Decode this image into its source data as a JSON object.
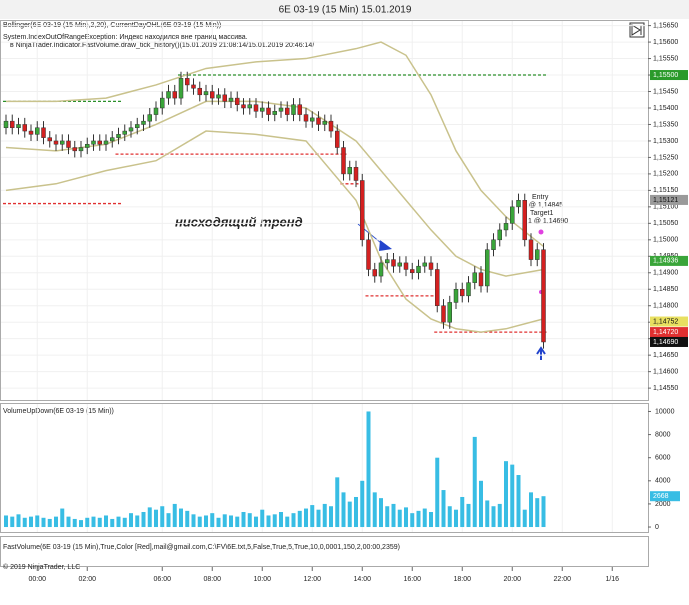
{
  "chart_data": [
    {
      "type": "candlestick",
      "title": "6E 03-19 (15 Min)  15.01.2019",
      "legend_text": [
        "Bollinger(6E 03-19 (15 Min),2,20), CurrentDayOHL(6E 03-19 (15 Min))",
        "System.IndexOutOfRangeException: Индекс находился вне границ массива.",
        "в NinjaTrader.Indicator.FastVolume.draw_tick_history()(15.01.2019 21:08:14/15.01.2019 20:46:14/"
      ],
      "annotation": "нисходящий тренд",
      "trade_labels": [
        "Entry",
        "1 @ 1,14845",
        "Target1",
        "1 @ 1,14690"
      ],
      "categories": [
        null,
        null,
        null,
        null,
        null,
        "00:00",
        null,
        null,
        null,
        null,
        null,
        null,
        null,
        "02:00",
        null,
        null,
        null,
        null,
        null,
        null,
        null,
        null,
        null,
        null,
        null,
        "06:00",
        null,
        null,
        null,
        null,
        null,
        null,
        null,
        "08:00",
        null,
        null,
        null,
        null,
        null,
        null,
        null,
        "10:00",
        null,
        null,
        null,
        null,
        null,
        null,
        null,
        "12:00",
        null,
        null,
        null,
        null,
        null,
        null,
        null,
        "14:00",
        null,
        null,
        null,
        null,
        null,
        null,
        null,
        "16:00",
        null,
        null,
        null,
        null,
        null,
        null,
        null,
        "18:00",
        null,
        null,
        null,
        null,
        null,
        null,
        null,
        "20:00",
        null,
        null,
        null,
        null,
        null,
        null,
        null,
        "22:00",
        null,
        null,
        null,
        null,
        null,
        null,
        null,
        "1/16"
      ],
      "open": [
        1.1534,
        1.1536,
        1.1534,
        1.1535,
        1.1533,
        1.1532,
        1.1534,
        1.1531,
        1.153,
        1.1529,
        1.153,
        1.1528,
        1.1527,
        1.1528,
        1.1529,
        1.153,
        1.1529,
        1.153,
        1.1531,
        1.1532,
        1.1533,
        1.1534,
        1.1535,
        1.1536,
        1.1538,
        1.154,
        1.1543,
        1.1545,
        1.1543,
        1.1549,
        1.1547,
        1.1546,
        1.1544,
        1.1545,
        1.1543,
        1.1544,
        1.1542,
        1.1543,
        1.1541,
        1.154,
        1.1541,
        1.1539,
        1.154,
        1.1538,
        1.1539,
        1.154,
        1.1538,
        1.1541,
        1.1538,
        1.1536,
        1.1537,
        1.1535,
        1.1536,
        1.1533,
        1.1528,
        1.152,
        1.1522,
        1.1518,
        1.15,
        1.1491,
        1.1489,
        1.1493,
        1.1494,
        1.1492,
        1.1493,
        1.1491,
        1.149,
        1.1492,
        1.1493,
        1.1491,
        1.148,
        1.1475,
        1.1481,
        1.1485,
        1.1483,
        1.1487,
        1.149,
        1.1486,
        1.1497,
        1.15,
        1.1503,
        1.1505,
        1.151,
        1.1512,
        1.15,
        1.1494,
        1.1497,
        null,
        null,
        null,
        null,
        null,
        null,
        null,
        null,
        null,
        null,
        null
      ],
      "high": [
        1.1538,
        1.1538,
        1.1537,
        1.1537,
        1.1535,
        1.1536,
        1.1536,
        1.1533,
        1.1532,
        1.1532,
        1.1532,
        1.153,
        1.153,
        1.1531,
        1.1532,
        1.1532,
        1.1532,
        1.1533,
        1.1534,
        1.1535,
        1.1536,
        1.1537,
        1.1538,
        1.154,
        1.1542,
        1.1545,
        1.1547,
        1.1547,
        1.1551,
        1.1551,
        1.1549,
        1.1548,
        1.1547,
        1.1547,
        1.1546,
        1.1546,
        1.1545,
        1.1545,
        1.1543,
        1.1543,
        1.1543,
        1.1542,
        1.1542,
        1.1541,
        1.1542,
        1.1542,
        1.1543,
        1.1543,
        1.154,
        1.1539,
        1.1539,
        1.1538,
        1.1538,
        1.1535,
        1.153,
        1.1524,
        1.1524,
        1.152,
        1.1502,
        1.1493,
        1.1495,
        1.1496,
        1.1496,
        1.1495,
        1.1495,
        1.1493,
        1.1494,
        1.1495,
        1.1495,
        1.1493,
        1.1482,
        1.1483,
        1.1487,
        1.1487,
        1.1489,
        1.1492,
        1.1492,
        1.1499,
        1.1502,
        1.1505,
        1.1507,
        1.1512,
        1.1514,
        1.1514,
        1.1502,
        1.1499,
        1.1499,
        null,
        null,
        null,
        null,
        null,
        null,
        null,
        null,
        null,
        null,
        null
      ],
      "low": [
        1.1532,
        1.1532,
        1.1532,
        1.1531,
        1.153,
        1.153,
        1.1529,
        1.1528,
        1.1527,
        1.1527,
        1.1526,
        1.1525,
        1.1525,
        1.1526,
        1.1527,
        1.1527,
        1.1527,
        1.1528,
        1.1529,
        1.153,
        1.1531,
        1.1532,
        1.1533,
        1.1534,
        1.1536,
        1.1538,
        1.1541,
        1.1541,
        1.1541,
        1.1545,
        1.1544,
        1.1542,
        1.1542,
        1.1541,
        1.1541,
        1.154,
        1.154,
        1.1539,
        1.1538,
        1.1538,
        1.1537,
        1.1537,
        1.1536,
        1.1536,
        1.1537,
        1.1536,
        1.1536,
        1.1536,
        1.1534,
        1.1534,
        1.1533,
        1.1533,
        1.1531,
        1.1526,
        1.1518,
        1.1518,
        1.1516,
        1.1498,
        1.1489,
        1.1487,
        1.1487,
        1.1491,
        1.149,
        1.149,
        1.1489,
        1.1488,
        1.1488,
        1.149,
        1.1489,
        1.1478,
        1.1473,
        1.1473,
        1.1479,
        1.1481,
        1.1481,
        1.1485,
        1.1484,
        1.1484,
        1.1495,
        1.1498,
        1.1501,
        1.1503,
        1.1508,
        1.1498,
        1.1492,
        1.1492,
        1.1467,
        null,
        null,
        null,
        null,
        null,
        null,
        null,
        null,
        null,
        null,
        null
      ],
      "close": [
        1.1536,
        1.1534,
        1.1535,
        1.1533,
        1.1532,
        1.1534,
        1.1531,
        1.153,
        1.1529,
        1.153,
        1.1528,
        1.1527,
        1.1528,
        1.1529,
        1.153,
        1.1529,
        1.153,
        1.1531,
        1.1532,
        1.1533,
        1.1534,
        1.1535,
        1.1536,
        1.1538,
        1.154,
        1.1543,
        1.1545,
        1.1543,
        1.1549,
        1.1547,
        1.1546,
        1.1544,
        1.1545,
        1.1543,
        1.1544,
        1.1542,
        1.1543,
        1.1541,
        1.154,
        1.1541,
        1.1539,
        1.154,
        1.1538,
        1.1539,
        1.154,
        1.1538,
        1.1541,
        1.1538,
        1.1536,
        1.1537,
        1.1535,
        1.1536,
        1.1533,
        1.1528,
        1.152,
        1.1522,
        1.1518,
        1.15,
        1.1491,
        1.1489,
        1.1493,
        1.1494,
        1.1492,
        1.1493,
        1.1491,
        1.149,
        1.1492,
        1.1493,
        1.1491,
        1.148,
        1.1475,
        1.1481,
        1.1485,
        1.1483,
        1.1487,
        1.149,
        1.1486,
        1.1497,
        1.15,
        1.1503,
        1.1505,
        1.151,
        1.1512,
        1.15,
        1.1494,
        1.1497,
        1.1469,
        null,
        null,
        null,
        null,
        null,
        null,
        null,
        null,
        null,
        null,
        null
      ],
      "up_color": "#3aa53a",
      "down_color": "#d42020",
      "ylim": [
        1.1452,
        1.15667
      ],
      "yticks": [
        {
          "value": 1.1455,
          "label": "1,14550"
        },
        {
          "value": 1.146,
          "label": "1,14600"
        },
        {
          "value": 1.1465,
          "label": "1,14650"
        },
        {
          "value": 1.147,
          "label": "1,14700"
        },
        {
          "value": 1.1475,
          "label": "1,14750"
        },
        {
          "value": 1.148,
          "label": "1,14800"
        },
        {
          "value": 1.1485,
          "label": "1,14850"
        },
        {
          "value": 1.149,
          "label": "1,14900"
        },
        {
          "value": 1.1495,
          "label": "1,14950"
        },
        {
          "value": 1.15,
          "label": "1,15000"
        },
        {
          "value": 1.1505,
          "label": "1,15050"
        },
        {
          "value": 1.151,
          "label": "1,15100"
        },
        {
          "value": 1.1515,
          "label": "1,15150"
        },
        {
          "value": 1.152,
          "label": "1,15200"
        },
        {
          "value": 1.1525,
          "label": "1,15250"
        },
        {
          "value": 1.153,
          "label": "1,15300"
        },
        {
          "value": 1.1535,
          "label": "1,15350"
        },
        {
          "value": 1.154,
          "label": "1,15400"
        },
        {
          "value": 1.1545,
          "label": "1,15450"
        },
        {
          "value": 1.155,
          "label": "1,15500"
        },
        {
          "value": 1.1555,
          "label": "1,15550"
        },
        {
          "value": 1.156,
          "label": "1,15600"
        },
        {
          "value": 1.1565,
          "label": "1,15650"
        }
      ],
      "grid": true,
      "bands": {
        "color": "#c9c28c",
        "x": [
          0,
          8,
          16,
          24,
          32,
          40,
          48,
          56,
          60,
          64,
          68,
          72,
          76,
          80,
          86
        ],
        "upper": [
          1.1542,
          1.1542,
          1.1543,
          1.1547,
          1.1552,
          1.1554,
          1.1555,
          1.1558,
          1.156,
          1.1556,
          1.1544,
          1.1527,
          1.1515,
          1.1507,
          1.1498
        ],
        "middle": [
          1.1528,
          1.1527,
          1.1529,
          1.1535,
          1.1542,
          1.1542,
          1.154,
          1.153,
          1.1521,
          1.1512,
          1.1503,
          1.1495,
          1.1491,
          1.1489,
          1.1491
        ],
        "lower": [
          1.1515,
          1.1517,
          1.1521,
          1.1524,
          1.1533,
          1.1532,
          1.153,
          1.1512,
          1.1494,
          1.1482,
          1.1476,
          1.1473,
          1.1472,
          1.1473,
          1.1476
        ]
      },
      "levels": [
        {
          "value": 1.1542,
          "color": "#2a8f2a",
          "from": 0,
          "to": 18
        },
        {
          "value": 1.1511,
          "color": "#e03030",
          "from": 0,
          "to": 18
        },
        {
          "value": 1.1526,
          "color": "#e03030",
          "from": 18,
          "to": 54
        },
        {
          "value": 1.155,
          "color": "#2a8f2a",
          "from": 28,
          "to": 86
        },
        {
          "value": 1.1517,
          "color": "#e03030",
          "from": 54,
          "to": 57
        },
        {
          "value": 1.1483,
          "color": "#e03030",
          "from": 58,
          "to": 69
        },
        {
          "value": 1.1472,
          "color": "#e03030",
          "from": 69,
          "to": 86
        }
      ],
      "price_markers": [
        {
          "value": 1.155,
          "label": "1,15500",
          "color": "#2a9a2a"
        },
        {
          "value": 1.15121,
          "label": "1,15121",
          "color": "#9a9a9a"
        },
        {
          "value": 1.14936,
          "label": "1,14936",
          "color": "#3aa53a"
        },
        {
          "value": 1.14752,
          "label": "1,14752",
          "color": "#e8e060"
        },
        {
          "value": 1.1472,
          "label": "1,14720",
          "color": "#e03030"
        },
        {
          "value": 1.1469,
          "label": "1,14690",
          "color": "#111111"
        }
      ]
    },
    {
      "type": "bar",
      "title": "VolumeUpDown(6E 03-19 (15 Min))",
      "values": [
        1000,
        900,
        1100,
        800,
        900,
        1000,
        800,
        700,
        900,
        1600,
        900,
        700,
        600,
        800,
        900,
        800,
        1000,
        700,
        900,
        800,
        1200,
        1000,
        1300,
        1700,
        1500,
        1800,
        1200,
        2000,
        1600,
        1400,
        1100,
        900,
        1000,
        1200,
        800,
        1100,
        1000,
        900,
        1300,
        1200,
        900,
        1500,
        1000,
        1100,
        1300,
        900,
        1200,
        1400,
        1600,
        1900,
        1500,
        2000,
        1800,
        4300,
        3000,
        2200,
        2600,
        4000,
        10000,
        3000,
        2500,
        1800,
        2000,
        1500,
        1700,
        1200,
        1400,
        1600,
        1300,
        6000,
        3200,
        1800,
        1500,
        2600,
        2000,
        7800,
        4000,
        2300,
        1800,
        2000,
        5700,
        5400,
        4500,
        1500,
        3000,
        2500,
        2668,
        null,
        null,
        null,
        null,
        null,
        null,
        null,
        null,
        null,
        null,
        null
      ],
      "color": "#38bde4",
      "ylim": [
        -430,
        10560
      ],
      "yticks": [
        0,
        2000,
        4000,
        6000,
        8000,
        10000
      ]
    }
  ],
  "fast_volume_panel": {
    "title": "FastVolume(6E 03-19 (15 Min),True,Color [Red],mail@gmail.com,C:\\FV\\6E.txt,5,False,True,5,True,10,0,0001,150,2,00:00,2359)"
  },
  "footer": "© 2019 NinjaTrader, LLC"
}
